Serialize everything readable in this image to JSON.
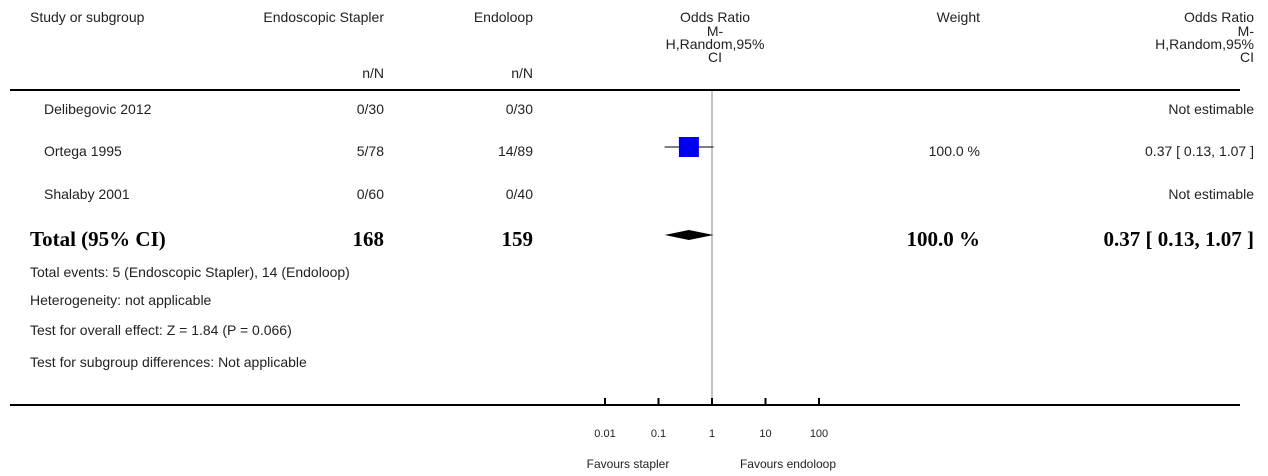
{
  "headers": {
    "study": "Study or subgroup",
    "group1": "Endoscopic Stapler",
    "group2": "Endoloop",
    "or_title": "Odds Ratio",
    "or_method_1": "M-",
    "or_method_2": "H,Random,95%",
    "or_method_3": "CI",
    "weight": "Weight",
    "or2_title": "Odds Ratio",
    "or2_method_1": "M-",
    "or2_method_2": "H,Random,95%",
    "or2_method_3": "CI",
    "n_label_1": "n/N",
    "n_label_2": "n/N"
  },
  "studies": [
    {
      "name": "Delibegovic 2012",
      "group1": "0/30",
      "group2": "0/30",
      "weight": "",
      "or_text": "Not estimable"
    },
    {
      "name": "Ortega 1995",
      "group1": "5/78",
      "group2": "14/89",
      "weight": "100.0 %",
      "or_text": "0.37 [ 0.13, 1.07 ]"
    },
    {
      "name": "Shalaby 2001",
      "group1": "0/60",
      "group2": "0/40",
      "weight": "",
      "or_text": "Not estimable"
    }
  ],
  "total": {
    "label": "Total (95% CI)",
    "group1": "168",
    "group2": "159",
    "weight": "100.0 %",
    "or_text": "0.37 [ 0.13, 1.07 ]"
  },
  "footnotes": {
    "events": "Total events: 5 (Endoscopic Stapler), 14 (Endoloop)",
    "heterogeneity": "Heterogeneity: not applicable",
    "overall": "Test for overall effect: Z = 1.84 (P = 0.066)",
    "subgroup": "Test for subgroup differences: Not applicable"
  },
  "axis": {
    "ticks": [
      "0.01",
      "0.1",
      "1",
      "10",
      "100"
    ],
    "favours_left": "Favours stapler",
    "favours_right": "Favours endoloop"
  },
  "colors": {
    "study_marker": "#0000ee",
    "diamond": "#000000"
  },
  "chart_data": {
    "type": "forest",
    "scale": "log",
    "xlim": [
      0.01,
      100
    ],
    "x_ticks": [
      0.01,
      0.1,
      1,
      10,
      100
    ],
    "null_line": 1,
    "points": [
      {
        "study": "Ortega 1995",
        "or": 0.37,
        "ci": [
          0.13,
          1.07
        ],
        "weight": 100.0
      }
    ],
    "pooled": {
      "or": 0.37,
      "ci": [
        0.13,
        1.07
      ]
    }
  }
}
